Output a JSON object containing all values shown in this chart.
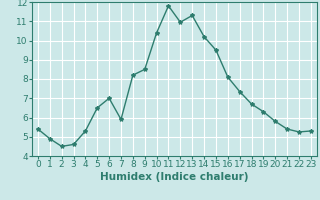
{
  "x": [
    0,
    1,
    2,
    3,
    4,
    5,
    6,
    7,
    8,
    9,
    10,
    11,
    12,
    13,
    14,
    15,
    16,
    17,
    18,
    19,
    20,
    21,
    22,
    23
  ],
  "y": [
    5.4,
    4.9,
    4.5,
    4.6,
    5.3,
    6.5,
    7.0,
    5.9,
    8.2,
    8.5,
    10.4,
    11.8,
    10.95,
    11.3,
    10.2,
    9.5,
    8.1,
    7.35,
    6.7,
    6.3,
    5.8,
    5.4,
    5.25,
    5.3
  ],
  "line_color": "#2e7d6e",
  "marker": "*",
  "marker_size": 3,
  "xlabel": "Humidex (Indice chaleur)",
  "xlim": [
    -0.5,
    23.5
  ],
  "ylim": [
    4,
    12
  ],
  "yticks": [
    4,
    5,
    6,
    7,
    8,
    9,
    10,
    11,
    12
  ],
  "xticks": [
    0,
    1,
    2,
    3,
    4,
    5,
    6,
    7,
    8,
    9,
    10,
    11,
    12,
    13,
    14,
    15,
    16,
    17,
    18,
    19,
    20,
    21,
    22,
    23
  ],
  "bg_color": "#cce8e8",
  "grid_color": "#ffffff",
  "tick_color": "#2e7d6e",
  "spine_color": "#2e7d6e",
  "label_fontsize": 7.5,
  "tick_fontsize": 6.5
}
